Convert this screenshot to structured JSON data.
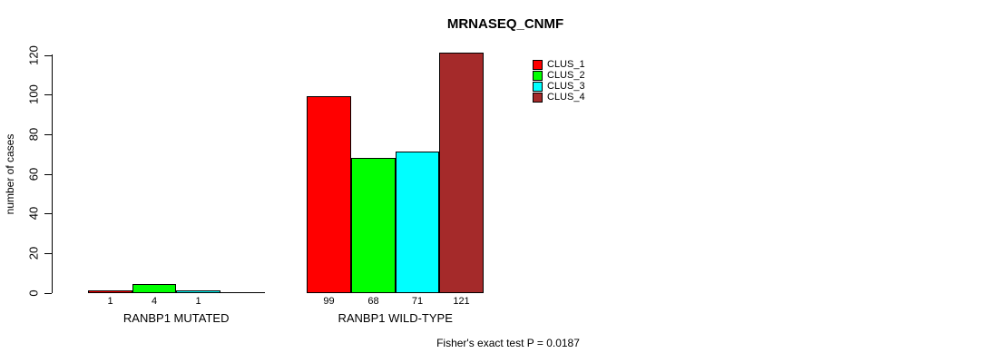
{
  "chart_data": {
    "type": "bar",
    "title": "MRNASEQ_CNMF",
    "xlabel": "",
    "ylabel": "number of cases",
    "ylim": [
      0,
      120
    ],
    "yticks": [
      0,
      20,
      40,
      60,
      80,
      100,
      120
    ],
    "grid": false,
    "legend_position": "top-right",
    "categories": [
      "RANBP1 MUTATED",
      "RANBP1 WILD-TYPE"
    ],
    "series": [
      {
        "name": "CLUS_1",
        "color": "#FF0000",
        "values": [
          1,
          99
        ]
      },
      {
        "name": "CLUS_2",
        "color": "#00FF00",
        "values": [
          4,
          68
        ]
      },
      {
        "name": "CLUS_3",
        "color": "#00FFFF",
        "values": [
          1,
          71
        ]
      },
      {
        "name": "CLUS_4",
        "color": "#A52A2A",
        "values": [
          0,
          121
        ]
      }
    ],
    "groups": [
      {
        "label": "RANBP1 MUTATED",
        "values": [
          1,
          4,
          1,
          0
        ],
        "bar_labels": [
          "1",
          "4",
          "1",
          ""
        ]
      },
      {
        "label": "RANBP1 WILD-TYPE",
        "values": [
          99,
          68,
          71,
          121
        ],
        "bar_labels": [
          "99",
          "68",
          "71",
          "121"
        ]
      }
    ],
    "annotation": "Fisher's exact test P = 0.0187"
  }
}
